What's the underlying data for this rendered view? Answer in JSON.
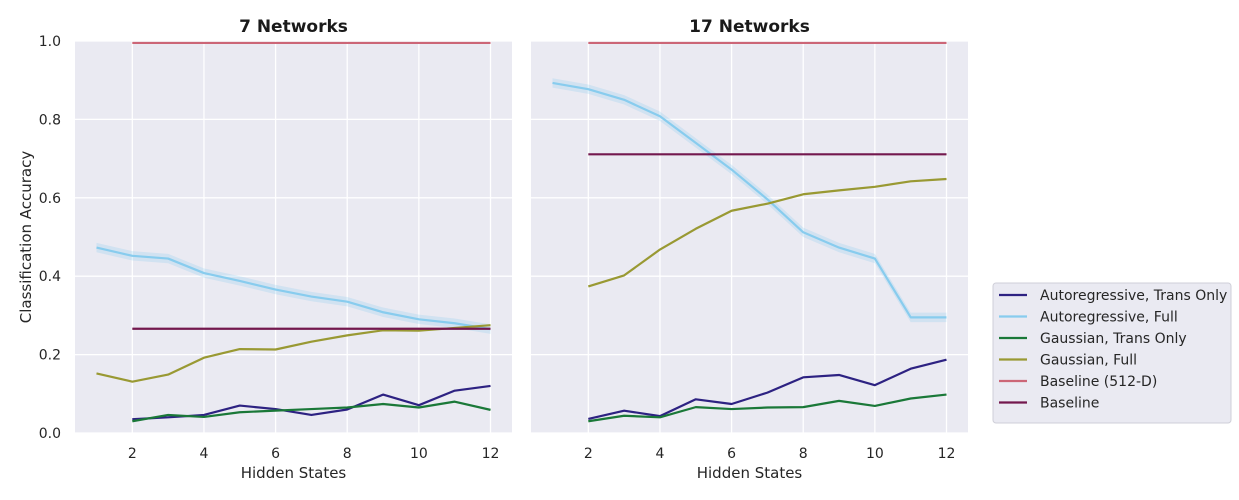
{
  "figure": {
    "ylabel": "Classification Accuracy"
  },
  "chart_data": [
    {
      "type": "line",
      "title": "7 Networks",
      "xlabel": "Hidden States",
      "ylabel": "Classification Accuracy",
      "xlim": [
        0.4,
        12.6
      ],
      "ylim": [
        0,
        1.0
      ],
      "xticks": [
        2,
        4,
        6,
        8,
        10,
        12
      ],
      "yticks": [
        0.0,
        0.2,
        0.4,
        0.6,
        0.8,
        1.0
      ],
      "grid": true,
      "series": [
        {
          "name": "Autoregressive, Trans Only",
          "color": "#2d2282",
          "x": [
            2,
            3,
            4,
            5,
            6,
            7,
            8,
            9,
            10,
            11,
            12
          ],
          "y": [
            0.035,
            0.04,
            0.046,
            0.07,
            0.061,
            0.046,
            0.06,
            0.098,
            0.071,
            0.108,
            0.12
          ]
        },
        {
          "name": "Autoregressive, Full",
          "color": "#88ccee",
          "band": true,
          "x": [
            1,
            2,
            3,
            4,
            5,
            6,
            7,
            8,
            9,
            10,
            11,
            12
          ],
          "y": [
            0.473,
            0.452,
            0.445,
            0.408,
            0.388,
            0.366,
            0.348,
            0.335,
            0.308,
            0.29,
            0.28,
            0.265
          ]
        },
        {
          "name": "Gaussian, Trans Only",
          "color": "#1a7838",
          "x": [
            2,
            3,
            4,
            5,
            6,
            7,
            8,
            9,
            10,
            11,
            12
          ],
          "y": [
            0.03,
            0.046,
            0.041,
            0.053,
            0.057,
            0.061,
            0.065,
            0.074,
            0.065,
            0.08,
            0.059
          ]
        },
        {
          "name": "Gaussian, Full",
          "color": "#999933",
          "x": [
            1,
            2,
            3,
            4,
            5,
            6,
            7,
            8,
            9,
            10,
            11,
            12
          ],
          "y": [
            0.152,
            0.131,
            0.149,
            0.192,
            0.214,
            0.213,
            0.233,
            0.249,
            0.262,
            0.261,
            0.268,
            0.275
          ]
        },
        {
          "name": "Baseline (512-D)",
          "color": "#cc6677",
          "x": [
            2,
            12
          ],
          "y": [
            0.995,
            0.995
          ]
        },
        {
          "name": "Baseline",
          "color": "#73184e",
          "x": [
            2,
            12
          ],
          "y": [
            0.266,
            0.266
          ]
        }
      ]
    },
    {
      "type": "line",
      "title": "17 Networks",
      "xlabel": "Hidden States",
      "ylabel": "",
      "xlim": [
        0.4,
        12.6
      ],
      "ylim": [
        0,
        1.0
      ],
      "xticks": [
        2,
        4,
        6,
        8,
        10,
        12
      ],
      "yticks": [
        0.0,
        0.2,
        0.4,
        0.6,
        0.8,
        1.0
      ],
      "grid": true,
      "series": [
        {
          "name": "Autoregressive, Trans Only",
          "color": "#2d2282",
          "x": [
            2,
            3,
            4,
            5,
            6,
            7,
            8,
            9,
            10,
            11,
            12
          ],
          "y": [
            0.036,
            0.057,
            0.043,
            0.086,
            0.074,
            0.103,
            0.142,
            0.148,
            0.122,
            0.164,
            0.187
          ]
        },
        {
          "name": "Autoregressive, Full",
          "color": "#88ccee",
          "band": true,
          "x": [
            1,
            2,
            3,
            4,
            5,
            6,
            7,
            8,
            9,
            10,
            11,
            12
          ],
          "y": [
            0.893,
            0.877,
            0.85,
            0.808,
            0.74,
            0.672,
            0.596,
            0.512,
            0.473,
            0.445,
            0.295,
            0.295
          ]
        },
        {
          "name": "Gaussian, Trans Only",
          "color": "#1a7838",
          "x": [
            2,
            3,
            4,
            5,
            6,
            7,
            8,
            9,
            10,
            11,
            12
          ],
          "y": [
            0.03,
            0.044,
            0.04,
            0.066,
            0.061,
            0.065,
            0.066,
            0.082,
            0.069,
            0.088,
            0.098
          ]
        },
        {
          "name": "Gaussian, Full",
          "color": "#999933",
          "x": [
            2,
            3,
            4,
            5,
            6,
            7,
            8,
            9,
            10,
            11,
            12
          ],
          "y": [
            0.374,
            0.402,
            0.468,
            0.521,
            0.567,
            0.585,
            0.609,
            0.619,
            0.628,
            0.642,
            0.648
          ]
        },
        {
          "name": "Baseline (512-D)",
          "color": "#cc6677",
          "x": [
            2,
            12
          ],
          "y": [
            0.995,
            0.995
          ]
        },
        {
          "name": "Baseline",
          "color": "#73184e",
          "x": [
            2,
            12
          ],
          "y": [
            0.711,
            0.711
          ]
        }
      ]
    }
  ],
  "legend": {
    "placement": "right",
    "entries": [
      {
        "label": "Autoregressive, Trans Only",
        "color": "#2d2282"
      },
      {
        "label": "Autoregressive, Full",
        "color": "#88ccee"
      },
      {
        "label": "Gaussian, Trans Only",
        "color": "#1a7838"
      },
      {
        "label": "Gaussian, Full",
        "color": "#999933"
      },
      {
        "label": "Baseline (512-D)",
        "color": "#cc6677"
      },
      {
        "label": "Baseline",
        "color": "#73184e"
      }
    ]
  },
  "style": {
    "plot_background": "#eaeaf2",
    "grid_color": "#ffffff"
  }
}
